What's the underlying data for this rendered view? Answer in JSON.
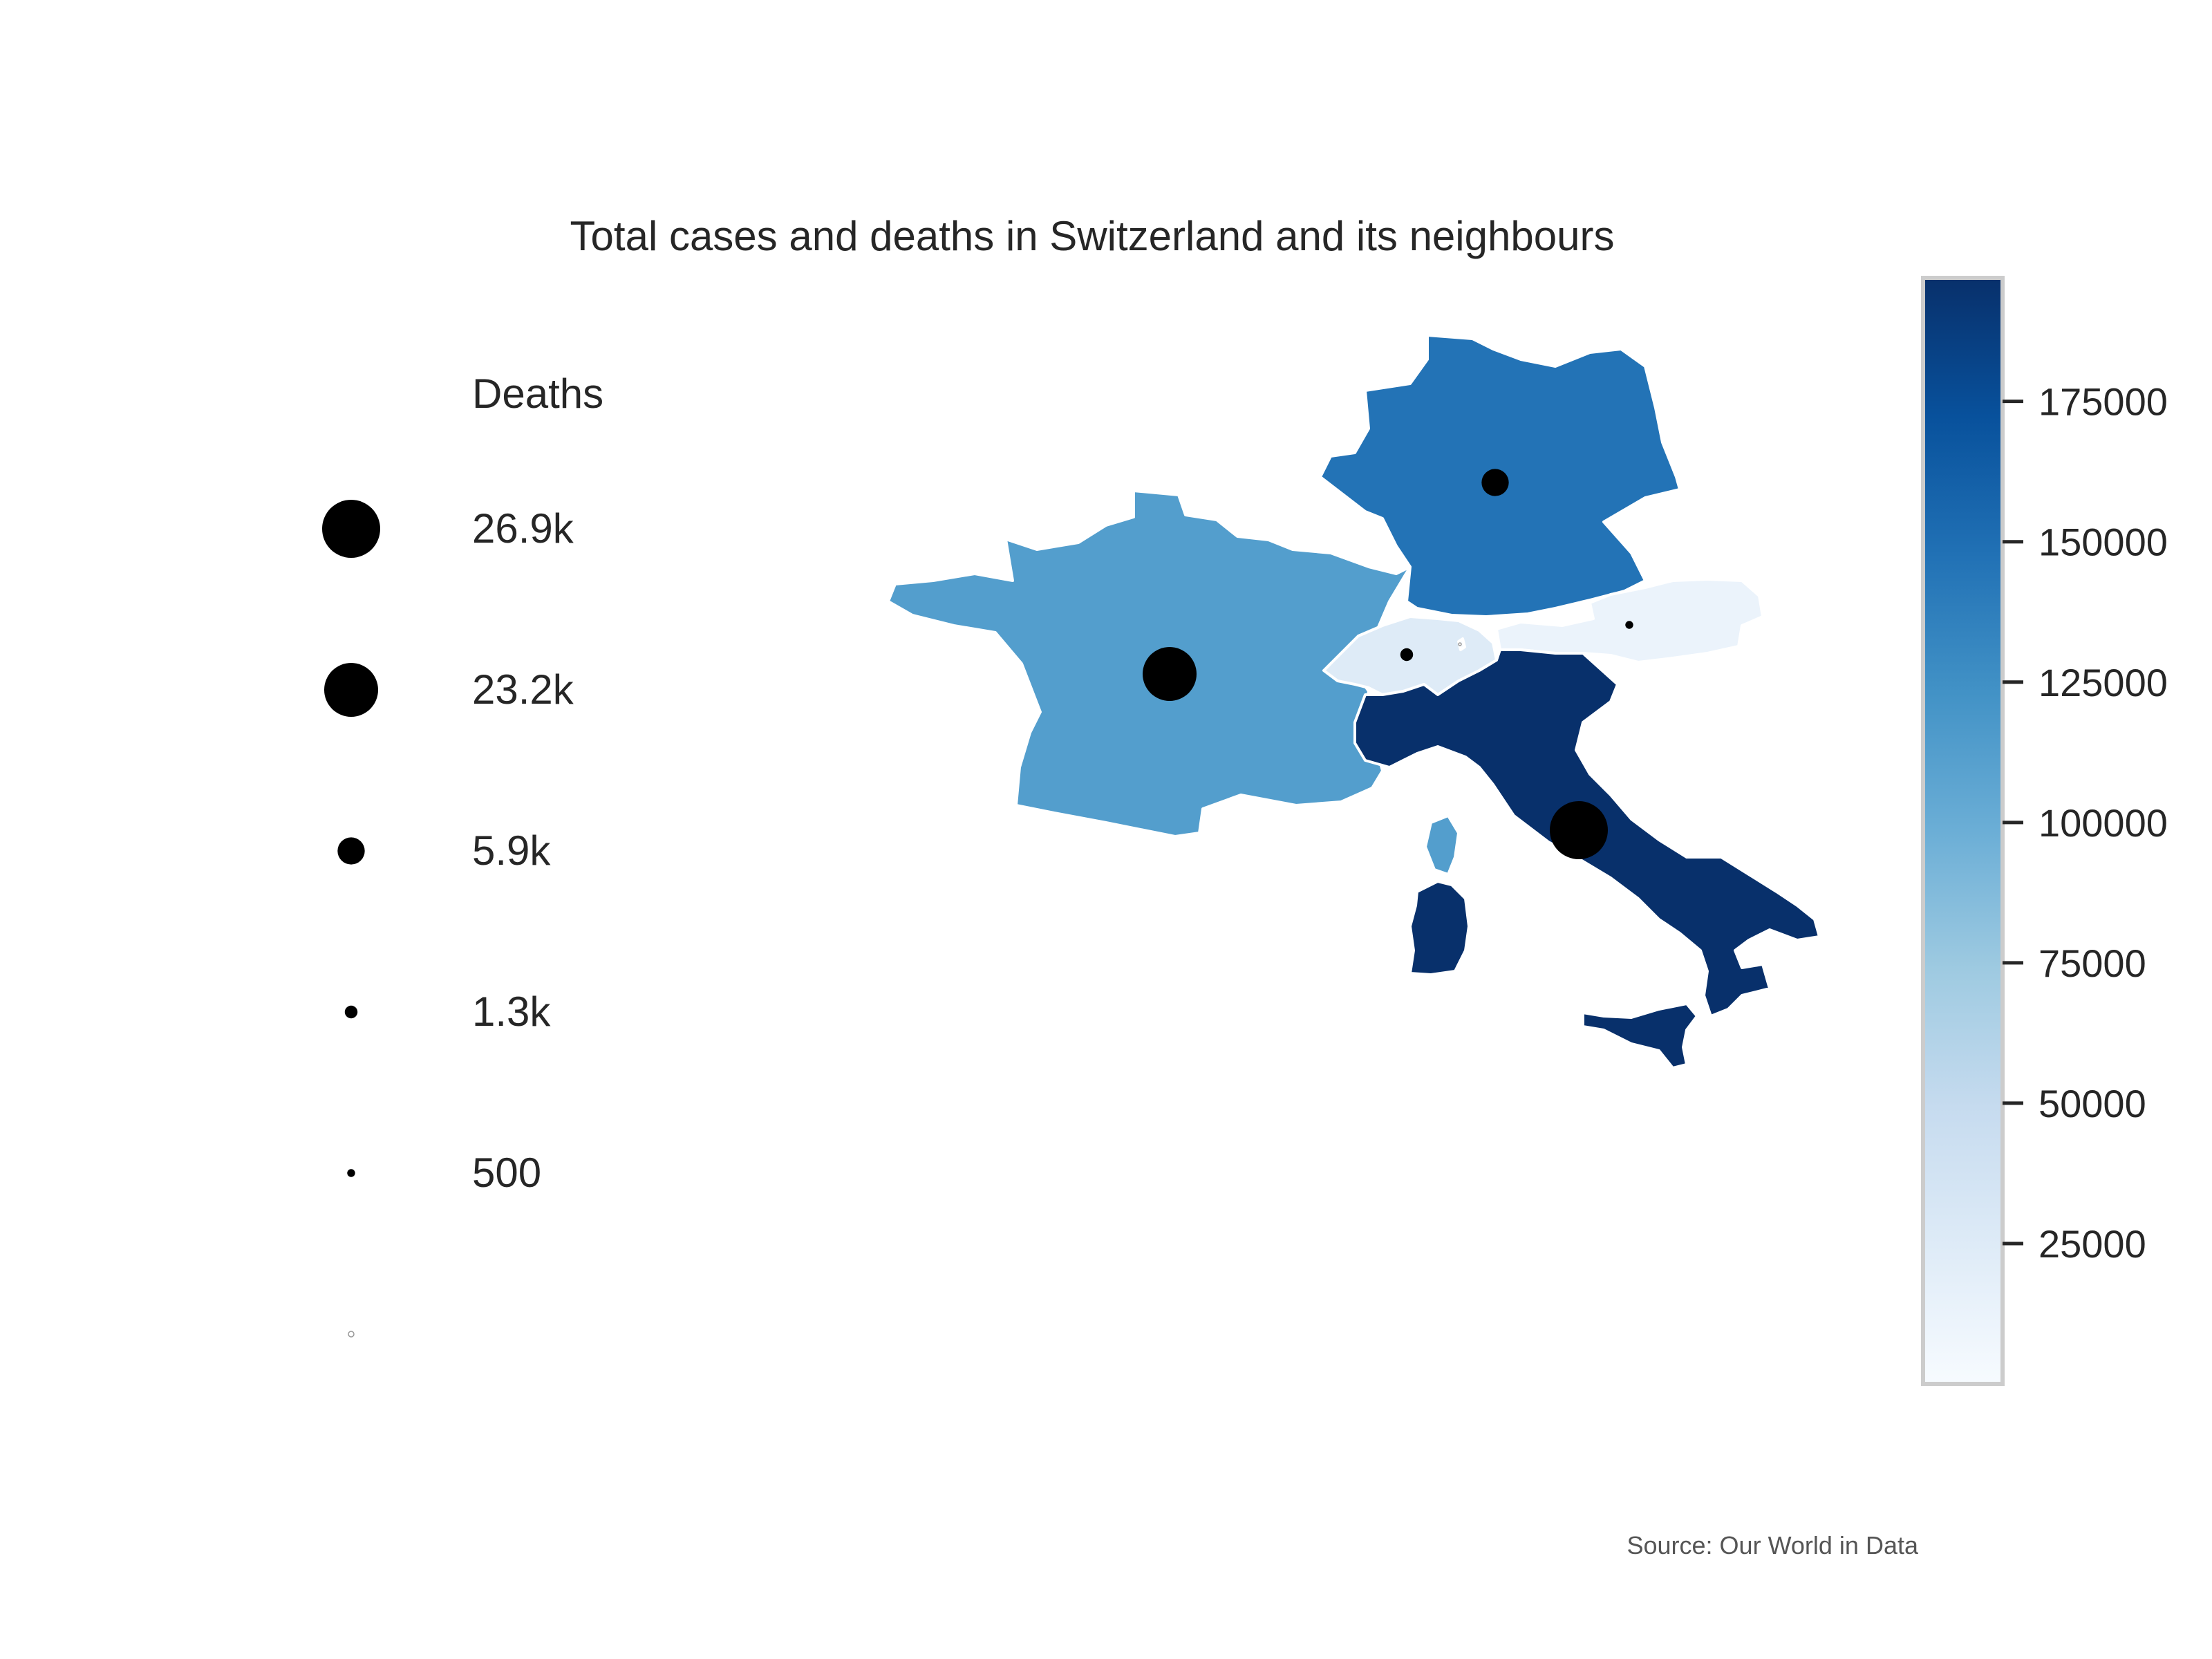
{
  "chart_data": {
    "type": "choropleth",
    "title": "Total cases and deaths in Switzerland and its neighbours",
    "source": "Source: Our World in Data",
    "color_scale": {
      "palette": [
        "#f7fbff",
        "#deebf7",
        "#c6dbef",
        "#9ecae1",
        "#6baed6",
        "#4292c6",
        "#2171b5",
        "#08519c",
        "#08306b"
      ],
      "min": 0,
      "max": 197000,
      "ticks": [
        25000,
        50000,
        75000,
        100000,
        125000,
        150000,
        175000
      ]
    },
    "size_legend": {
      "title": "Deaths",
      "entries": [
        {
          "label": "26.9k",
          "value": 26900
        },
        {
          "label": "23.2k",
          "value": 23200
        },
        {
          "label": "5.9k",
          "value": 5900
        },
        {
          "label": "1.3k",
          "value": 1300
        },
        {
          "label": "500",
          "value": 500
        },
        {
          "label": "",
          "value": 20
        }
      ],
      "marker_color": "#000000"
    },
    "regions": [
      {
        "country": "France",
        "cases": 113000,
        "deaths": 23200
      },
      {
        "country": "Germany",
        "cases": 146000,
        "deaths": 5900
      },
      {
        "country": "Switzerland",
        "cases": 25000,
        "deaths": 1300
      },
      {
        "country": "Austria",
        "cases": 12000,
        "deaths": 500
      },
      {
        "country": "Italy",
        "cases": 197000,
        "deaths": 26900
      },
      {
        "country": "Liechtenstein",
        "cases": 80,
        "deaths": 1
      }
    ]
  }
}
